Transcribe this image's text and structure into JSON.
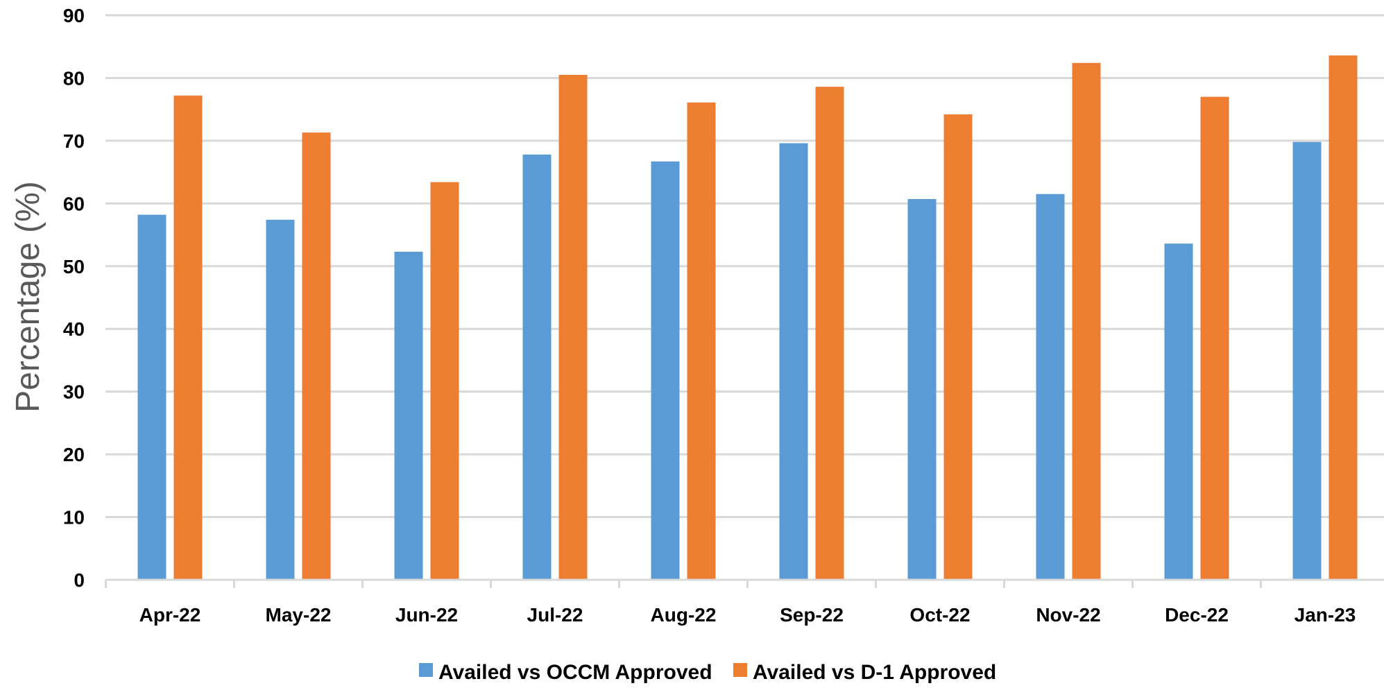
{
  "chart_data": {
    "type": "bar",
    "title": "",
    "xlabel": "",
    "ylabel": "Percentage (%)",
    "ylim": [
      0,
      90
    ],
    "y_ticks": [
      0,
      10,
      20,
      30,
      40,
      50,
      60,
      70,
      80,
      90
    ],
    "grid": true,
    "legend_position": "bottom",
    "categories": [
      "Apr-22",
      "May-22",
      "Jun-22",
      "Jul-22",
      "Aug-22",
      "Sep-22",
      "Oct-22",
      "Nov-22",
      "Dec-22",
      "Jan-23"
    ],
    "series": [
      {
        "name": "Availed vs OCCM Approved",
        "color": "#5b9bd5",
        "values": [
          58.2,
          57.4,
          52.3,
          67.8,
          66.7,
          69.6,
          60.7,
          61.5,
          53.6,
          69.8
        ]
      },
      {
        "name": "Availed vs D-1 Approved",
        "color": "#ed7d31",
        "values": [
          77.2,
          71.3,
          63.4,
          80.5,
          76.1,
          78.6,
          74.2,
          82.4,
          77.0,
          83.6
        ]
      }
    ]
  }
}
